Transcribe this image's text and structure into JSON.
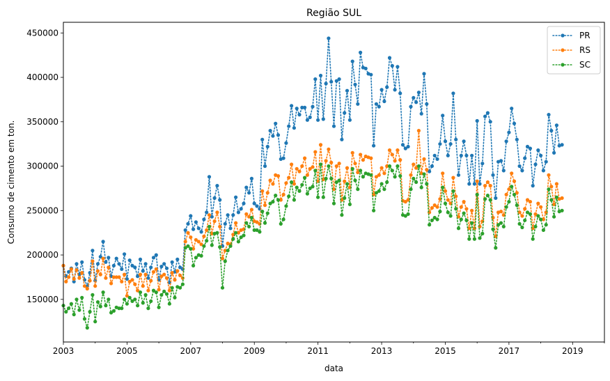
{
  "chart_data": {
    "type": "line",
    "title": "Região SUL",
    "xlabel": "data",
    "ylabel": "Consumo de cimento em ton.",
    "xlim": [
      2003.0,
      2020.0
    ],
    "ylim": [
      102000,
      462000
    ],
    "xticks": [
      {
        "value": 2003,
        "label": "2003"
      },
      {
        "value": 2005,
        "label": "2005"
      },
      {
        "value": 2007,
        "label": "2007"
      },
      {
        "value": 2009,
        "label": "2009"
      },
      {
        "value": 2011,
        "label": "2011"
      },
      {
        "value": 2013,
        "label": "2013"
      },
      {
        "value": 2015,
        "label": "2015"
      },
      {
        "value": 2017,
        "label": "2017"
      },
      {
        "value": 2019,
        "label": "2019"
      }
    ],
    "yticks": [
      {
        "value": 150000,
        "label": "150000"
      },
      {
        "value": 200000,
        "label": "200000"
      },
      {
        "value": 250000,
        "label": "250000"
      },
      {
        "value": 300000,
        "label": "300000"
      },
      {
        "value": 350000,
        "label": "350000"
      },
      {
        "value": 400000,
        "label": "400000"
      },
      {
        "value": 450000,
        "label": "450000"
      }
    ],
    "grid": false,
    "legend_position": "top-right",
    "line_style": "dotted",
    "marker": "circle",
    "x_start": "2003-01",
    "x_frequency": "monthly",
    "series": [
      {
        "name": "PR",
        "color": "#1f77b4",
        "values": [
          188000,
          176000,
          181000,
          185000,
          170000,
          190000,
          178000,
          192000,
          172000,
          165000,
          180000,
          205000,
          171000,
          190000,
          198000,
          215000,
          192000,
          197000,
          176000,
          188000,
          196000,
          190000,
          184000,
          201000,
          173000,
          194000,
          188000,
          186000,
          176000,
          195000,
          182000,
          190000,
          174000,
          186000,
          197000,
          200000,
          172000,
          187000,
          190000,
          185000,
          169000,
          192000,
          181000,
          195000,
          186000,
          184000,
          228000,
          235000,
          244000,
          229000,
          237000,
          230000,
          226000,
          240000,
          248000,
          288000,
          243000,
          264000,
          278000,
          262000,
          210000,
          235000,
          245000,
          230000,
          245000,
          265000,
          248000,
          252000,
          258000,
          276000,
          270000,
          286000,
          258000,
          255000,
          252000,
          330000,
          300000,
          322000,
          340000,
          334000,
          348000,
          335000,
          308000,
          309000,
          326000,
          345000,
          368000,
          343000,
          365000,
          358000,
          366000,
          366000,
          352000,
          355000,
          367000,
          398000,
          352000,
          402000,
          353000,
          393000,
          444000,
          395000,
          345000,
          396000,
          398000,
          330000,
          360000,
          385000,
          352000,
          418000,
          392000,
          370000,
          428000,
          411000,
          410000,
          404000,
          403000,
          323000,
          370000,
          367000,
          386000,
          373000,
          389000,
          422000,
          413000,
          386000,
          412000,
          382000,
          324000,
          320000,
          322000,
          367000,
          377000,
          372000,
          383000,
          359000,
          404000,
          370000,
          294000,
          300000,
          312000,
          308000,
          325000,
          357000,
          328000,
          312000,
          325000,
          382000,
          330000,
          290000,
          312000,
          328000,
          312000,
          280000,
          312000,
          280000,
          351000,
          280000,
          303000,
          356000,
          360000,
          350000,
          290000,
          264000,
          305000,
          306000,
          295000,
          328000,
          338000,
          365000,
          348000,
          330000,
          300000,
          295000,
          309000,
          322000,
          320000,
          278000,
          302000,
          318000,
          312000,
          295000,
          305000,
          358000,
          340000,
          315000,
          346000,
          323000,
          324000
        ]
      },
      {
        "name": "RS",
        "color": "#ff7f0e",
        "values": [
          188000,
          170000,
          175000,
          184000,
          173000,
          183000,
          174000,
          180000,
          165000,
          162000,
          171000,
          193000,
          165000,
          182000,
          178000,
          196000,
          174000,
          186000,
          168000,
          175000,
          175000,
          175000,
          170000,
          178000,
          154000,
          170000,
          172000,
          167000,
          160000,
          178000,
          165000,
          178000,
          160000,
          171000,
          181000,
          184000,
          161000,
          176000,
          178000,
          174000,
          160000,
          180000,
          172000,
          182000,
          177000,
          174000,
          215000,
          225000,
          220000,
          207000,
          217000,
          215000,
          212000,
          221000,
          228000,
          245000,
          224000,
          238000,
          248000,
          232000,
          196000,
          205000,
          213000,
          212000,
          223000,
          236000,
          225000,
          228000,
          229000,
          246000,
          243000,
          251000,
          238000,
          237000,
          235000,
          272000,
          256000,
          270000,
          284000,
          280000,
          290000,
          289000,
          262000,
          268000,
          281000,
          287000,
          302000,
          280000,
          297000,
          294000,
          300000,
          309000,
          290000,
          297000,
          299000,
          316000,
          283000,
          324000,
          285000,
          306000,
          319000,
          304000,
          274000,
          300000,
          303000,
          262000,
          283000,
          298000,
          276000,
          315000,
          303000,
          293000,
          313000,
          307000,
          311000,
          310000,
          309000,
          268000,
          288000,
          290000,
          298000,
          292000,
          300000,
          318000,
          313000,
          306000,
          318000,
          307000,
          261000,
          260000,
          262000,
          290000,
          302000,
          298000,
          340000,
          292000,
          308000,
          296000,
          248000,
          253000,
          256000,
          254000,
          263000,
          292000,
          272000,
          262000,
          258000,
          287000,
          266000,
          243000,
          254000,
          260000,
          252000,
          230000,
          250000,
          230000,
          283000,
          232000,
          238000,
          278000,
          282000,
          278000,
          242000,
          221000,
          248000,
          249000,
          245000,
          268000,
          274000,
          292000,
          283000,
          270000,
          248000,
          244000,
          252000,
          262000,
          260000,
          230000,
          246000,
          258000,
          254000,
          240000,
          248000,
          290000,
          277000,
          257000,
          280000,
          263000,
          264000
        ]
      },
      {
        "name": "SC",
        "color": "#2ca02c",
        "values": [
          143000,
          136000,
          140000,
          145000,
          133000,
          150000,
          138000,
          152000,
          128000,
          118000,
          136000,
          155000,
          125000,
          147000,
          142000,
          158000,
          143000,
          150000,
          135000,
          137000,
          141000,
          140000,
          140000,
          150000,
          145000,
          152000,
          148000,
          150000,
          143000,
          158000,
          146000,
          155000,
          140000,
          148000,
          160000,
          158000,
          141000,
          155000,
          159000,
          156000,
          145000,
          163000,
          152000,
          164000,
          163000,
          167000,
          208000,
          210000,
          207000,
          188000,
          197000,
          200000,
          199000,
          210000,
          216000,
          232000,
          211000,
          224000,
          225000,
          209000,
          163000,
          193000,
          205000,
          210000,
          218000,
          225000,
          215000,
          220000,
          222000,
          236000,
          232000,
          242000,
          228000,
          228000,
          226000,
          249000,
          236000,
          247000,
          258000,
          260000,
          267000,
          262000,
          235000,
          240000,
          255000,
          266000,
          282000,
          262000,
          276000,
          272000,
          279000,
          287000,
          269000,
          275000,
          277000,
          295000,
          265000,
          302000,
          265000,
          286000,
          300000,
          286000,
          258000,
          282000,
          284000,
          245000,
          264000,
          280000,
          257000,
          297000,
          284000,
          274000,
          295000,
          288000,
          292000,
          291000,
          290000,
          250000,
          270000,
          272000,
          280000,
          274000,
          282000,
          300000,
          295000,
          288000,
          300000,
          289000,
          245000,
          244000,
          246000,
          274000,
          286000,
          282000,
          300000,
          276000,
          291000,
          280000,
          234000,
          239000,
          242000,
          240000,
          249000,
          276000,
          258000,
          248000,
          244000,
          272000,
          252000,
          230000,
          240000,
          247000,
          239000,
          218000,
          236000,
          218000,
          268000,
          219000,
          224000,
          263000,
          267000,
          262000,
          229000,
          208000,
          234000,
          236000,
          232000,
          254000,
          260000,
          277000,
          268000,
          256000,
          235000,
          231000,
          239000,
          248000,
          246000,
          218000,
          232000,
          244000,
          240000,
          228000,
          234000,
          274000,
          262000,
          243000,
          265000,
          249000,
          250000
        ]
      }
    ]
  }
}
